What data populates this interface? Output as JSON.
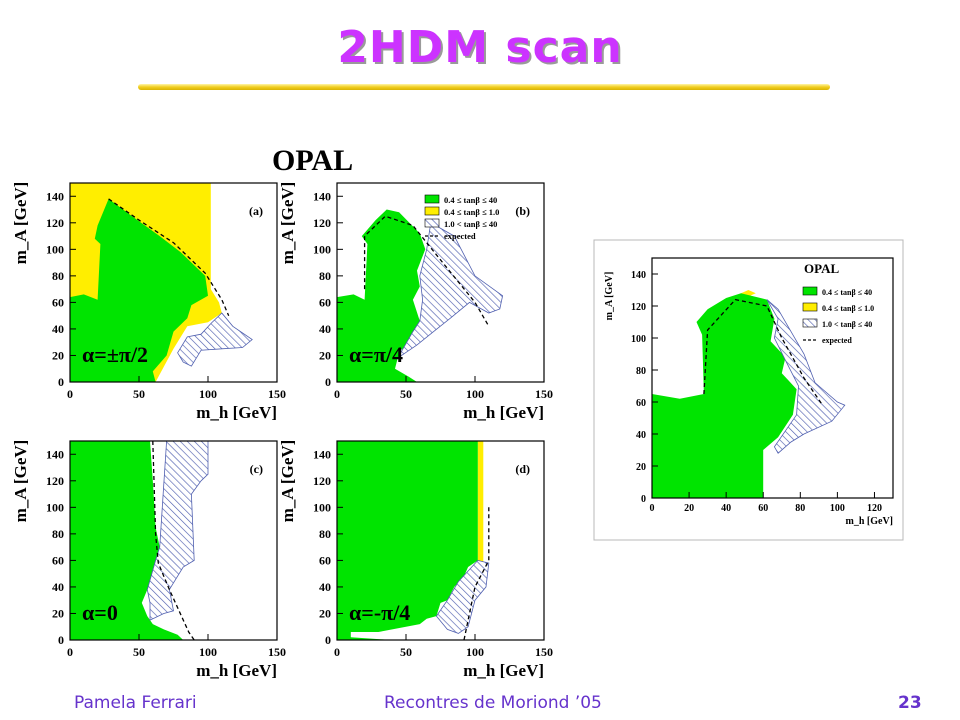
{
  "slide": {
    "title": "2HDM scan",
    "footer_left": "Pamela Ferrari",
    "footer_center": "Recontres de Moriond ’05",
    "page_number": "23"
  },
  "figure_label": "OPAL",
  "colors": {
    "title": "#cc33ff",
    "rule": "#f2cf22",
    "green_region": "#00e400",
    "yellow_region": "#ffee00",
    "hatch_region": "#5060b0",
    "footer": "#6633cc"
  },
  "legend": [
    {
      "label": "0.4 ≤ tanβ ≤ 40",
      "swatch": "green"
    },
    {
      "label": "0.4 ≤ tanβ ≤ 1.0",
      "swatch": "yellow"
    },
    {
      "label": "1.0 < tanβ ≤ 40",
      "swatch": "hatch"
    },
    {
      "label": "expected",
      "swatch": "dashed"
    }
  ],
  "chart_data": [
    {
      "type": "area",
      "panel_label": "(a)",
      "annotation": "α=±π/2",
      "xlabel": "m_h [GeV]",
      "ylabel": "m_A [GeV]",
      "xlim": [
        0,
        150
      ],
      "ylim": [
        0,
        150
      ],
      "x_ticks": [
        "0",
        "50",
        "100",
        "150"
      ],
      "y_ticks": [
        "0",
        "20",
        "40",
        "60",
        "80",
        "100",
        "120",
        "140"
      ],
      "regions": [
        {
          "series": "0.4 ≤ tanβ ≤ 1.0",
          "points": [
            [
              0,
              150
            ],
            [
              102,
              150
            ],
            [
              102,
              70
            ],
            [
              108,
              60
            ],
            [
              110,
              52
            ],
            [
              100,
              45
            ],
            [
              85,
              42
            ],
            [
              75,
              25
            ],
            [
              62,
              0
            ],
            [
              0,
              0
            ]
          ]
        },
        {
          "series": "0.4 ≤ tanβ ≤ 40",
          "points": [
            [
              0,
              0
            ],
            [
              0,
              64
            ],
            [
              10,
              66
            ],
            [
              20,
              62
            ],
            [
              22,
              104
            ],
            [
              18,
              108
            ],
            [
              20,
              118
            ],
            [
              28,
              138
            ],
            [
              45,
              125
            ],
            [
              65,
              110
            ],
            [
              80,
              98
            ],
            [
              98,
              80
            ],
            [
              100,
              65
            ],
            [
              88,
              58
            ],
            [
              85,
              48
            ],
            [
              75,
              38
            ],
            [
              70,
              20
            ],
            [
              60,
              8
            ],
            [
              62,
              0
            ]
          ]
        },
        {
          "series": "1.0 < tanβ ≤ 40",
          "points": [
            [
              78,
              22
            ],
            [
              85,
              34
            ],
            [
              95,
              36
            ],
            [
              102,
              44
            ],
            [
              110,
              52
            ],
            [
              118,
              42
            ],
            [
              132,
              32
            ],
            [
              125,
              26
            ],
            [
              110,
              25
            ],
            [
              95,
              24
            ],
            [
              88,
              12
            ],
            [
              82,
              15
            ]
          ]
        }
      ],
      "expected": [
        [
          28,
          138
        ],
        [
          50,
          122
        ],
        [
          75,
          105
        ],
        [
          98,
          82
        ],
        [
          110,
          62
        ],
        [
          115,
          50
        ]
      ]
    },
    {
      "type": "area",
      "panel_label": "(b)",
      "annotation": "α=π/4",
      "xlabel": "m_h [GeV]",
      "ylabel": "m_A [GeV]",
      "xlim": [
        0,
        150
      ],
      "ylim": [
        0,
        150
      ],
      "x_ticks": [
        "0",
        "50",
        "100",
        "150"
      ],
      "y_ticks": [
        "0",
        "20",
        "40",
        "60",
        "80",
        "100",
        "120",
        "140"
      ],
      "regions": [
        {
          "series": "0.4 ≤ tanβ ≤ 1.0",
          "points": [
            [
              30,
              120
            ],
            [
              36,
              126
            ],
            [
              34,
              120
            ]
          ]
        },
        {
          "series": "0.4 ≤ tanβ ≤ 40",
          "points": [
            [
              0,
              0
            ],
            [
              0,
              64
            ],
            [
              12,
              66
            ],
            [
              20,
              62
            ],
            [
              22,
              104
            ],
            [
              18,
              110
            ],
            [
              28,
              122
            ],
            [
              36,
              130
            ],
            [
              45,
              128
            ],
            [
              60,
              112
            ],
            [
              64,
              100
            ],
            [
              58,
              84
            ],
            [
              60,
              72
            ],
            [
              55,
              62
            ],
            [
              60,
              46
            ],
            [
              55,
              35
            ],
            [
              52,
              28
            ],
            [
              46,
              24
            ],
            [
              44,
              18
            ],
            [
              42,
              10
            ],
            [
              52,
              4
            ],
            [
              58,
              0
            ]
          ]
        },
        {
          "series": "1.0 < tanβ ≤ 40",
          "points": [
            [
              44,
              18
            ],
            [
              55,
              38
            ],
            [
              60,
              46
            ],
            [
              62,
              62
            ],
            [
              60,
              80
            ],
            [
              65,
              100
            ],
            [
              68,
              120
            ],
            [
              85,
              110
            ],
            [
              100,
              80
            ],
            [
              120,
              65
            ],
            [
              118,
              55
            ],
            [
              110,
              52
            ],
            [
              96,
              60
            ],
            [
              82,
              48
            ],
            [
              70,
              38
            ],
            [
              58,
              28
            ]
          ]
        }
      ],
      "expected": [
        [
          20,
          70
        ],
        [
          20,
          110
        ],
        [
          35,
          125
        ],
        [
          55,
          118
        ],
        [
          75,
          92
        ],
        [
          100,
          60
        ],
        [
          110,
          42
        ]
      ]
    },
    {
      "type": "area",
      "panel_label": "(c)",
      "annotation": "α=0",
      "xlabel": "m_h [GeV]",
      "ylabel": "m_A [GeV]",
      "xlim": [
        0,
        150
      ],
      "ylim": [
        0,
        150
      ],
      "x_ticks": [
        "0",
        "50",
        "100",
        "150"
      ],
      "y_ticks": [
        "0",
        "20",
        "40",
        "60",
        "80",
        "100",
        "120",
        "140"
      ],
      "regions": [
        {
          "series": "0.4 ≤ tanβ ≤ 40",
          "points": [
            [
              0,
              0
            ],
            [
              0,
              150
            ],
            [
              58,
              150
            ],
            [
              60,
              120
            ],
            [
              62,
              85
            ],
            [
              65,
              70
            ],
            [
              62,
              60
            ],
            [
              60,
              45
            ],
            [
              56,
              38
            ],
            [
              52,
              28
            ],
            [
              56,
              18
            ],
            [
              60,
              12
            ],
            [
              68,
              8
            ],
            [
              78,
              4
            ],
            [
              82,
              0
            ]
          ]
        },
        {
          "series": "1.0 < tanβ ≤ 40",
          "points": [
            [
              56,
              38
            ],
            [
              62,
              60
            ],
            [
              65,
              70
            ],
            [
              70,
              150
            ],
            [
              100,
              150
            ],
            [
              100,
              125
            ],
            [
              95,
              120
            ],
            [
              88,
              110
            ],
            [
              90,
              60
            ],
            [
              82,
              55
            ],
            [
              72,
              38
            ],
            [
              75,
              22
            ],
            [
              68,
              20
            ],
            [
              58,
              15
            ],
            [
              58,
              28
            ]
          ]
        }
      ],
      "expected": [
        [
          60,
          150
        ],
        [
          62,
          80
        ],
        [
          64,
          58
        ],
        [
          72,
          38
        ],
        [
          86,
          6
        ],
        [
          90,
          0
        ]
      ]
    },
    {
      "type": "area",
      "panel_label": "(d)",
      "annotation": "α=-π/4",
      "xlabel": "m_h [GeV]",
      "ylabel": "m_A [GeV]",
      "xlim": [
        0,
        150
      ],
      "ylim": [
        0,
        150
      ],
      "x_ticks": [
        "0",
        "50",
        "100",
        "150"
      ],
      "y_ticks": [
        "0",
        "20",
        "40",
        "60",
        "80",
        "100",
        "120",
        "140"
      ],
      "regions": [
        {
          "series": "0.4 ≤ tanβ ≤ 1.0",
          "points": [
            [
              102,
              150
            ],
            [
              106,
              150
            ],
            [
              106,
              50
            ],
            [
              102,
              50
            ]
          ]
        },
        {
          "series": "0.4 ≤ tanβ ≤ 40",
          "points": [
            [
              0,
              0
            ],
            [
              0,
              150
            ],
            [
              102,
              150
            ],
            [
              102,
              60
            ],
            [
              95,
              55
            ],
            [
              92,
              48
            ],
            [
              85,
              40
            ],
            [
              80,
              30
            ],
            [
              75,
              28
            ],
            [
              72,
              18
            ],
            [
              65,
              16
            ],
            [
              60,
              12
            ],
            [
              50,
              10
            ],
            [
              40,
              8
            ],
            [
              30,
              6
            ],
            [
              10,
              6
            ],
            [
              10,
              2
            ],
            [
              40,
              0
            ]
          ]
        },
        {
          "series": "1.0 < tanβ ≤ 40",
          "points": [
            [
              72,
              18
            ],
            [
              80,
              30
            ],
            [
              88,
              44
            ],
            [
              95,
              52
            ],
            [
              102,
              60
            ],
            [
              110,
              58
            ],
            [
              108,
              40
            ],
            [
              100,
              30
            ],
            [
              95,
              10
            ],
            [
              88,
              5
            ],
            [
              80,
              8
            ]
          ]
        }
      ],
      "expected": [
        [
          110,
          100
        ],
        [
          110,
          60
        ],
        [
          106,
          52
        ],
        [
          100,
          40
        ],
        [
          96,
          20
        ],
        [
          92,
          0
        ]
      ]
    },
    {
      "type": "area",
      "title": "OPAL",
      "xlabel": "m_h [GeV]",
      "ylabel": "m_A [GeV]",
      "xlim": [
        0,
        130
      ],
      "ylim": [
        0,
        150
      ],
      "x_ticks": [
        "0",
        "20",
        "40",
        "60",
        "80",
        "100",
        "120"
      ],
      "y_ticks": [
        "0",
        "20",
        "40",
        "60",
        "80",
        "100",
        "120",
        "140"
      ],
      "legend_position": "top-right",
      "regions": [
        {
          "series": "0.4 ≤ tanβ ≤ 1.0",
          "points": [
            [
              48,
              128
            ],
            [
              52,
              130
            ],
            [
              56,
              128
            ],
            [
              50,
              125
            ]
          ]
        },
        {
          "series": "0.4 ≤ tanβ ≤ 40",
          "points": [
            [
              0,
              0
            ],
            [
              0,
              65
            ],
            [
              15,
              62
            ],
            [
              28,
              65
            ],
            [
              27,
              102
            ],
            [
              24,
              110
            ],
            [
              30,
              118
            ],
            [
              40,
              125
            ],
            [
              48,
              128
            ],
            [
              62,
              124
            ],
            [
              66,
              112
            ],
            [
              64,
              98
            ],
            [
              72,
              88
            ],
            [
              70,
              78
            ],
            [
              78,
              68
            ],
            [
              76,
              52
            ],
            [
              68,
              38
            ],
            [
              60,
              30
            ],
            [
              60,
              0
            ]
          ]
        },
        {
          "series": "1.0 < tanβ ≤ 40",
          "points": [
            [
              62,
              124
            ],
            [
              68,
              118
            ],
            [
              82,
              90
            ],
            [
              88,
              72
            ],
            [
              100,
              60
            ],
            [
              104,
              58
            ],
            [
              97,
              48
            ],
            [
              82,
              40
            ],
            [
              75,
              35
            ],
            [
              68,
              28
            ],
            [
              66,
              32
            ],
            [
              78,
              52
            ],
            [
              79,
              70
            ],
            [
              72,
              86
            ],
            [
              66,
              100
            ],
            [
              68,
              112
            ]
          ]
        }
      ],
      "expected": [
        [
          28,
          65
        ],
        [
          30,
          105
        ],
        [
          45,
          124
        ],
        [
          62,
          120
        ],
        [
          70,
          100
        ],
        [
          82,
          75
        ],
        [
          92,
          58
        ]
      ]
    }
  ]
}
